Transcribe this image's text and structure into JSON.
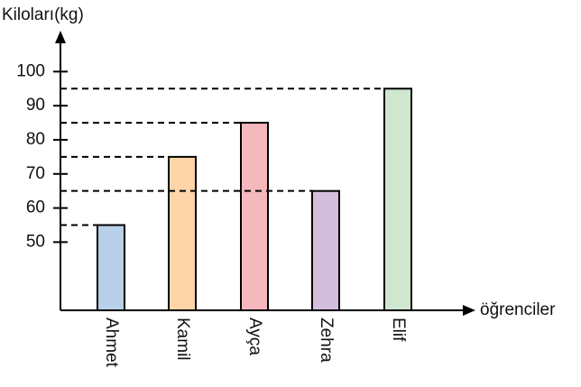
{
  "chart_data": {
    "type": "bar",
    "y_axis_label": "Kiloları(kg)",
    "x_axis_label": "öğrenciler",
    "categories": [
      "Ahmet",
      "Kamil",
      "Ayça",
      "Zehra",
      "Elif"
    ],
    "values": [
      55,
      75,
      85,
      65,
      95
    ],
    "colors": [
      "#b8cfe9",
      "#fdd5a8",
      "#f5b8bd",
      "#d4bede",
      "#cfe6cf"
    ],
    "ylim": [
      30,
      112
    ],
    "yticks": [
      50,
      60,
      70,
      80,
      90,
      100
    ],
    "guide_lines": true
  }
}
